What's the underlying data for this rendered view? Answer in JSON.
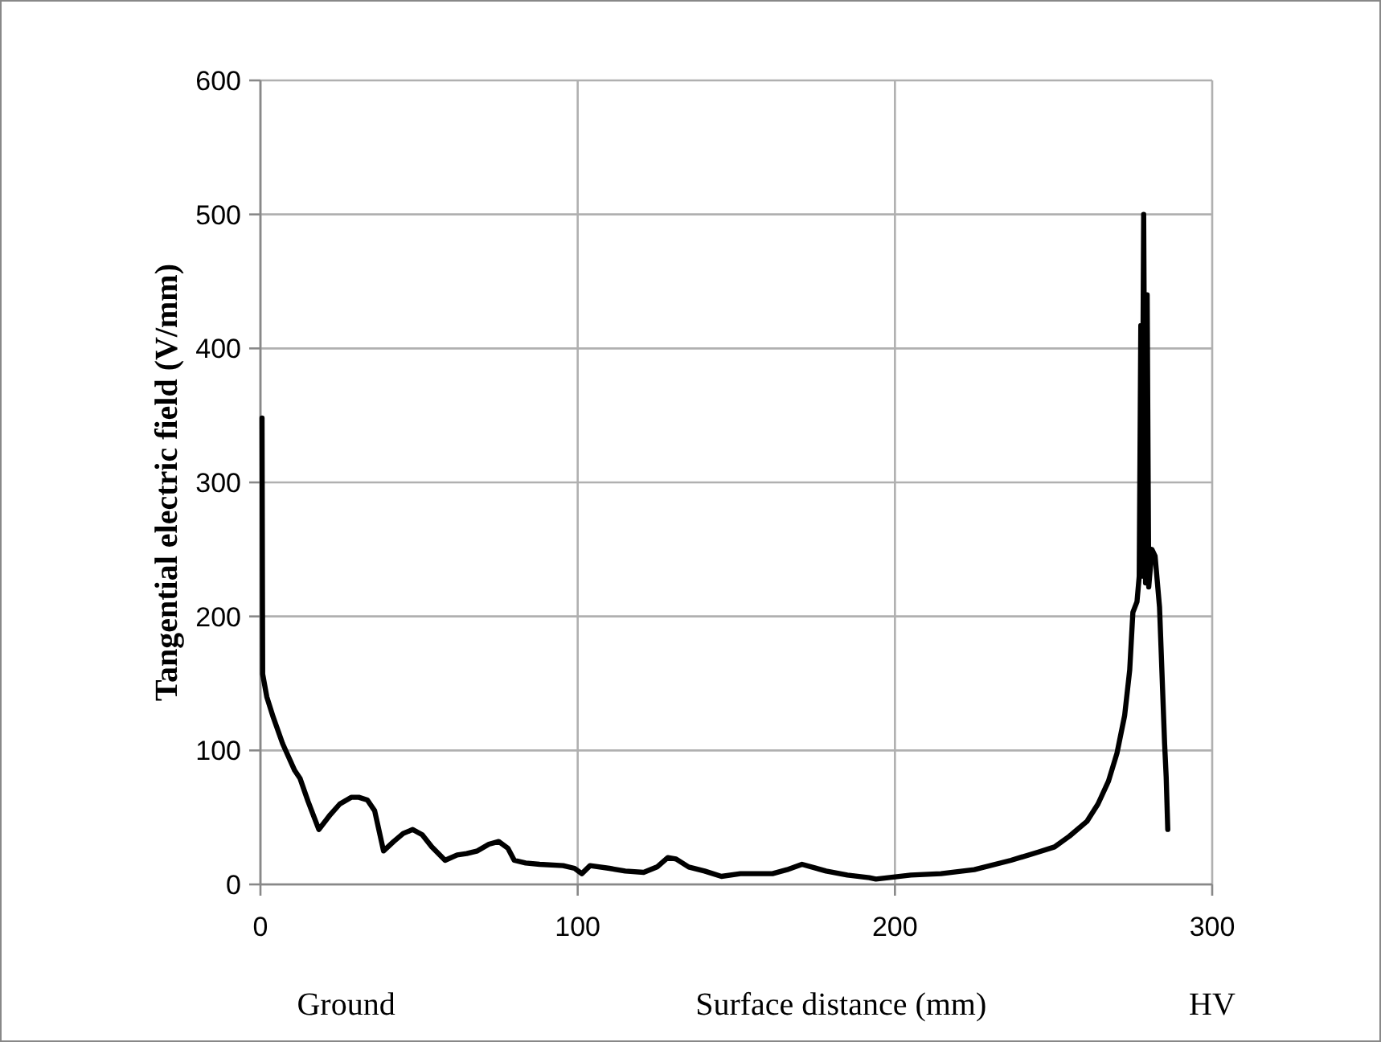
{
  "chart_data": {
    "type": "line",
    "xlabel": "Surface distance (mm)",
    "ylabel": "Tangential electric field (V/mm)",
    "annotations": [
      "Ground",
      "HV"
    ],
    "xlim": [
      0,
      300
    ],
    "xticks": [
      0,
      100,
      200,
      300
    ],
    "ylim": [
      0,
      600
    ],
    "yticks": [
      0,
      100,
      200,
      300,
      400,
      500,
      600
    ],
    "grid": true,
    "marker": "none",
    "line_style": "solid",
    "series": [
      {
        "color": "#000000",
        "x": [
          0.5,
          0.7,
          2,
          4,
          7,
          10.8,
          12.5,
          15,
          18.4,
          22,
          25,
          28.6,
          31,
          33.7,
          36,
          38.8,
          42,
          45,
          48,
          51,
          54,
          58.2,
          62,
          65,
          68.4,
          72,
          75.1,
          78,
          80,
          83.6,
          88,
          95.4,
          99,
          101.3,
          103.9,
          110,
          115,
          120.8,
          125,
          128.4,
          131,
          135,
          140,
          145.3,
          151.3,
          161.4,
          166,
          170.7,
          178.3,
          185,
          191.9,
          194,
          205,
          214.5,
          225,
          236.6,
          245,
          250.3,
          255,
          260.5,
          264,
          267.3,
          270,
          272.4,
          274,
          275,
          276.3,
          277,
          277.5,
          277.8,
          278.4,
          279,
          279.5,
          280,
          281,
          282,
          283.4,
          285,
          285.5,
          286
        ],
        "values": [
          348,
          157,
          140,
          125,
          105,
          85,
          79,
          62,
          41,
          52,
          60,
          65,
          65,
          63,
          55,
          25,
          32,
          38,
          41,
          37,
          28,
          18,
          22,
          23,
          25,
          30,
          32,
          27,
          18,
          16,
          15,
          14,
          12,
          8,
          14,
          12,
          10,
          9,
          13,
          20,
          19,
          13,
          10,
          6,
          8,
          8,
          11,
          15,
          10,
          7,
          5,
          4,
          7,
          8,
          11,
          18,
          24,
          28,
          36,
          47,
          60,
          77,
          98,
          126,
          160,
          203,
          211,
          230,
          417,
          230,
          500,
          225,
          440,
          222,
          250,
          245,
          207,
          105,
          80,
          41
        ]
      }
    ]
  }
}
